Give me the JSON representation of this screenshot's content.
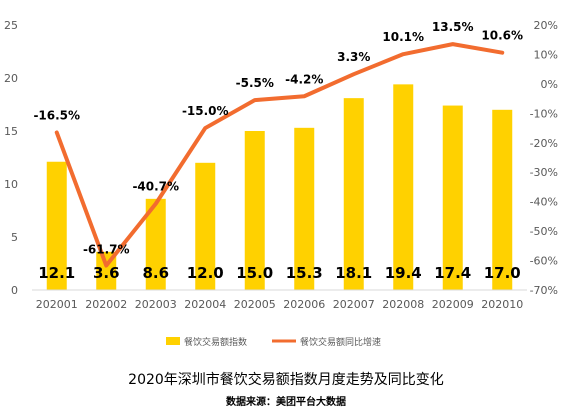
{
  "chart_data": {
    "type": "bar",
    "title": "2020年深圳市餐饮交易额指数月度走势及同比变化",
    "source": "数据来源：美团平台大数据",
    "categories": [
      "202001",
      "202002",
      "202003",
      "202004",
      "202005",
      "202006",
      "202007",
      "202008",
      "202009",
      "202010"
    ],
    "series": [
      {
        "name": "餐饮交易额指数",
        "type": "bar",
        "axis": "left",
        "color": "#FFD100",
        "values": [
          12.1,
          3.6,
          8.6,
          12.0,
          15.0,
          15.3,
          18.1,
          19.4,
          17.4,
          17.0
        ],
        "labels": [
          "12.1",
          "3.6",
          "8.6",
          "12.0",
          "15.0",
          "15.3",
          "18.1",
          "19.4",
          "17.4",
          "17.0"
        ]
      },
      {
        "name": "餐饮交易额同比增速",
        "type": "line",
        "axis": "right",
        "color": "#F26C2F",
        "values": [
          -16.5,
          -61.7,
          -40.7,
          -15.0,
          -5.5,
          -4.2,
          3.3,
          10.1,
          13.5,
          10.6
        ],
        "labels": [
          "-16.5%",
          "-61.7%",
          "-40.7%",
          "-15.0%",
          "-5.5%",
          "-4.2%",
          "3.3%",
          "10.1%",
          "13.5%",
          "10.6%"
        ]
      }
    ],
    "y_left": {
      "min": 0,
      "max": 25,
      "ticks": [
        "0",
        "5",
        "10",
        "15",
        "20",
        "25"
      ]
    },
    "y_right": {
      "min": -70,
      "max": 20,
      "ticks": [
        "-70%",
        "-60%",
        "-50%",
        "-40%",
        "-30%",
        "-20%",
        "-10%",
        "0%",
        "10%",
        "20%"
      ]
    },
    "grid": false,
    "legend_position": "bottom"
  }
}
